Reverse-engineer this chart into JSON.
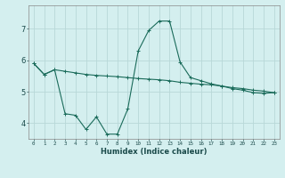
{
  "xlabel": "Humidex (Indice chaleur)",
  "bg_color": "#d4efef",
  "grid_color": "#b8d8d8",
  "line_color": "#1a6b5a",
  "xlim": [
    -0.5,
    23.5
  ],
  "ylim": [
    3.5,
    7.75
  ],
  "yticks": [
    4,
    5,
    6,
    7
  ],
  "xticks": [
    0,
    1,
    2,
    3,
    4,
    5,
    6,
    7,
    8,
    9,
    10,
    11,
    12,
    13,
    14,
    15,
    16,
    17,
    18,
    19,
    20,
    21,
    22,
    23
  ],
  "series1_x": [
    0,
    1,
    2,
    3,
    4,
    5,
    6,
    7,
    8,
    9,
    10,
    11,
    12,
    13,
    14,
    15,
    16,
    17,
    18,
    19,
    20,
    21,
    22,
    23
  ],
  "series1_y": [
    5.9,
    5.55,
    5.7,
    5.65,
    5.6,
    5.55,
    5.52,
    5.5,
    5.48,
    5.45,
    5.42,
    5.4,
    5.38,
    5.35,
    5.3,
    5.27,
    5.24,
    5.22,
    5.18,
    5.13,
    5.1,
    5.05,
    5.02,
    4.97
  ],
  "series2_x": [
    0,
    1,
    2,
    3,
    4,
    5,
    6,
    7,
    8,
    9,
    10,
    11,
    12,
    13,
    14,
    15,
    16,
    17,
    18,
    19,
    20,
    21,
    22,
    23
  ],
  "series2_y": [
    5.9,
    5.55,
    5.7,
    4.3,
    4.25,
    3.8,
    4.2,
    3.65,
    3.65,
    4.45,
    6.3,
    6.95,
    7.25,
    7.25,
    5.95,
    5.45,
    5.35,
    5.25,
    5.18,
    5.1,
    5.05,
    4.97,
    4.95,
    4.97
  ]
}
